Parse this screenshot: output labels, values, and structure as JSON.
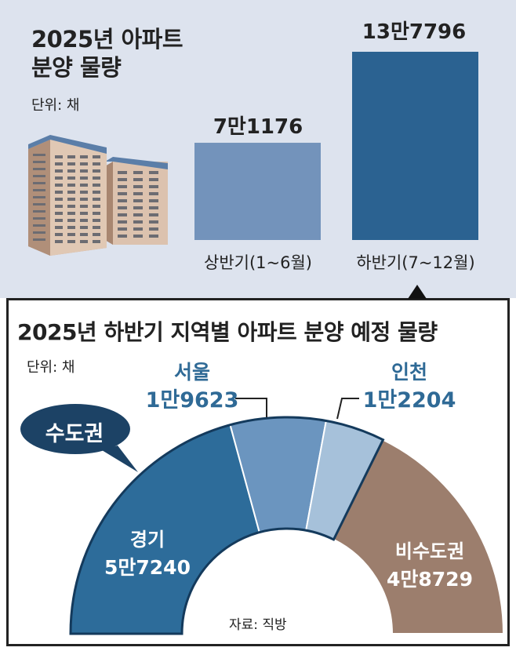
{
  "top_chart": {
    "title_line1": "2025년 아파트",
    "title_line2": "분양 물량",
    "unit": "단위: 채",
    "colors": {
      "first_half": "#7393bb",
      "second_half": "#2b6291",
      "background": "#dde3ee"
    }
  },
  "bottom_chart": {
    "title": "2025년 하반기 지역별 아파트 분양 예정 물량",
    "unit": "단위: 채",
    "bubble_label": "수도권",
    "source": "자료: 직방",
    "colors": {
      "gyeonggi": "#2d6c9a",
      "seoul": "#6b95bf",
      "incheon": "#a6c1da",
      "non_capital": "#9c7e6d",
      "bubble": "#1c4265"
    }
  },
  "chart_data": [
    {
      "type": "bar",
      "categories": [
        "상반기(1~6월)",
        "하반기(7~12월)"
      ],
      "values": [
        71176,
        137796
      ],
      "value_labels": [
        "7만1176",
        "13만7796"
      ],
      "title": "2025년 아파트 분양 물량",
      "ylabel": "",
      "unit": "채"
    },
    {
      "type": "pie",
      "shape": "half-donut",
      "title": "2025년 하반기 지역별 아파트 분양 예정 물량",
      "unit": "채",
      "categories": [
        "경기",
        "서울",
        "인천",
        "비수도권"
      ],
      "values": [
        57240,
        19623,
        12204,
        48729
      ],
      "value_labels": [
        "5만7240",
        "1만9623",
        "1만2204",
        "4만8729"
      ],
      "group": {
        "label": "수도권",
        "members": [
          "경기",
          "서울",
          "인천"
        ]
      }
    }
  ]
}
